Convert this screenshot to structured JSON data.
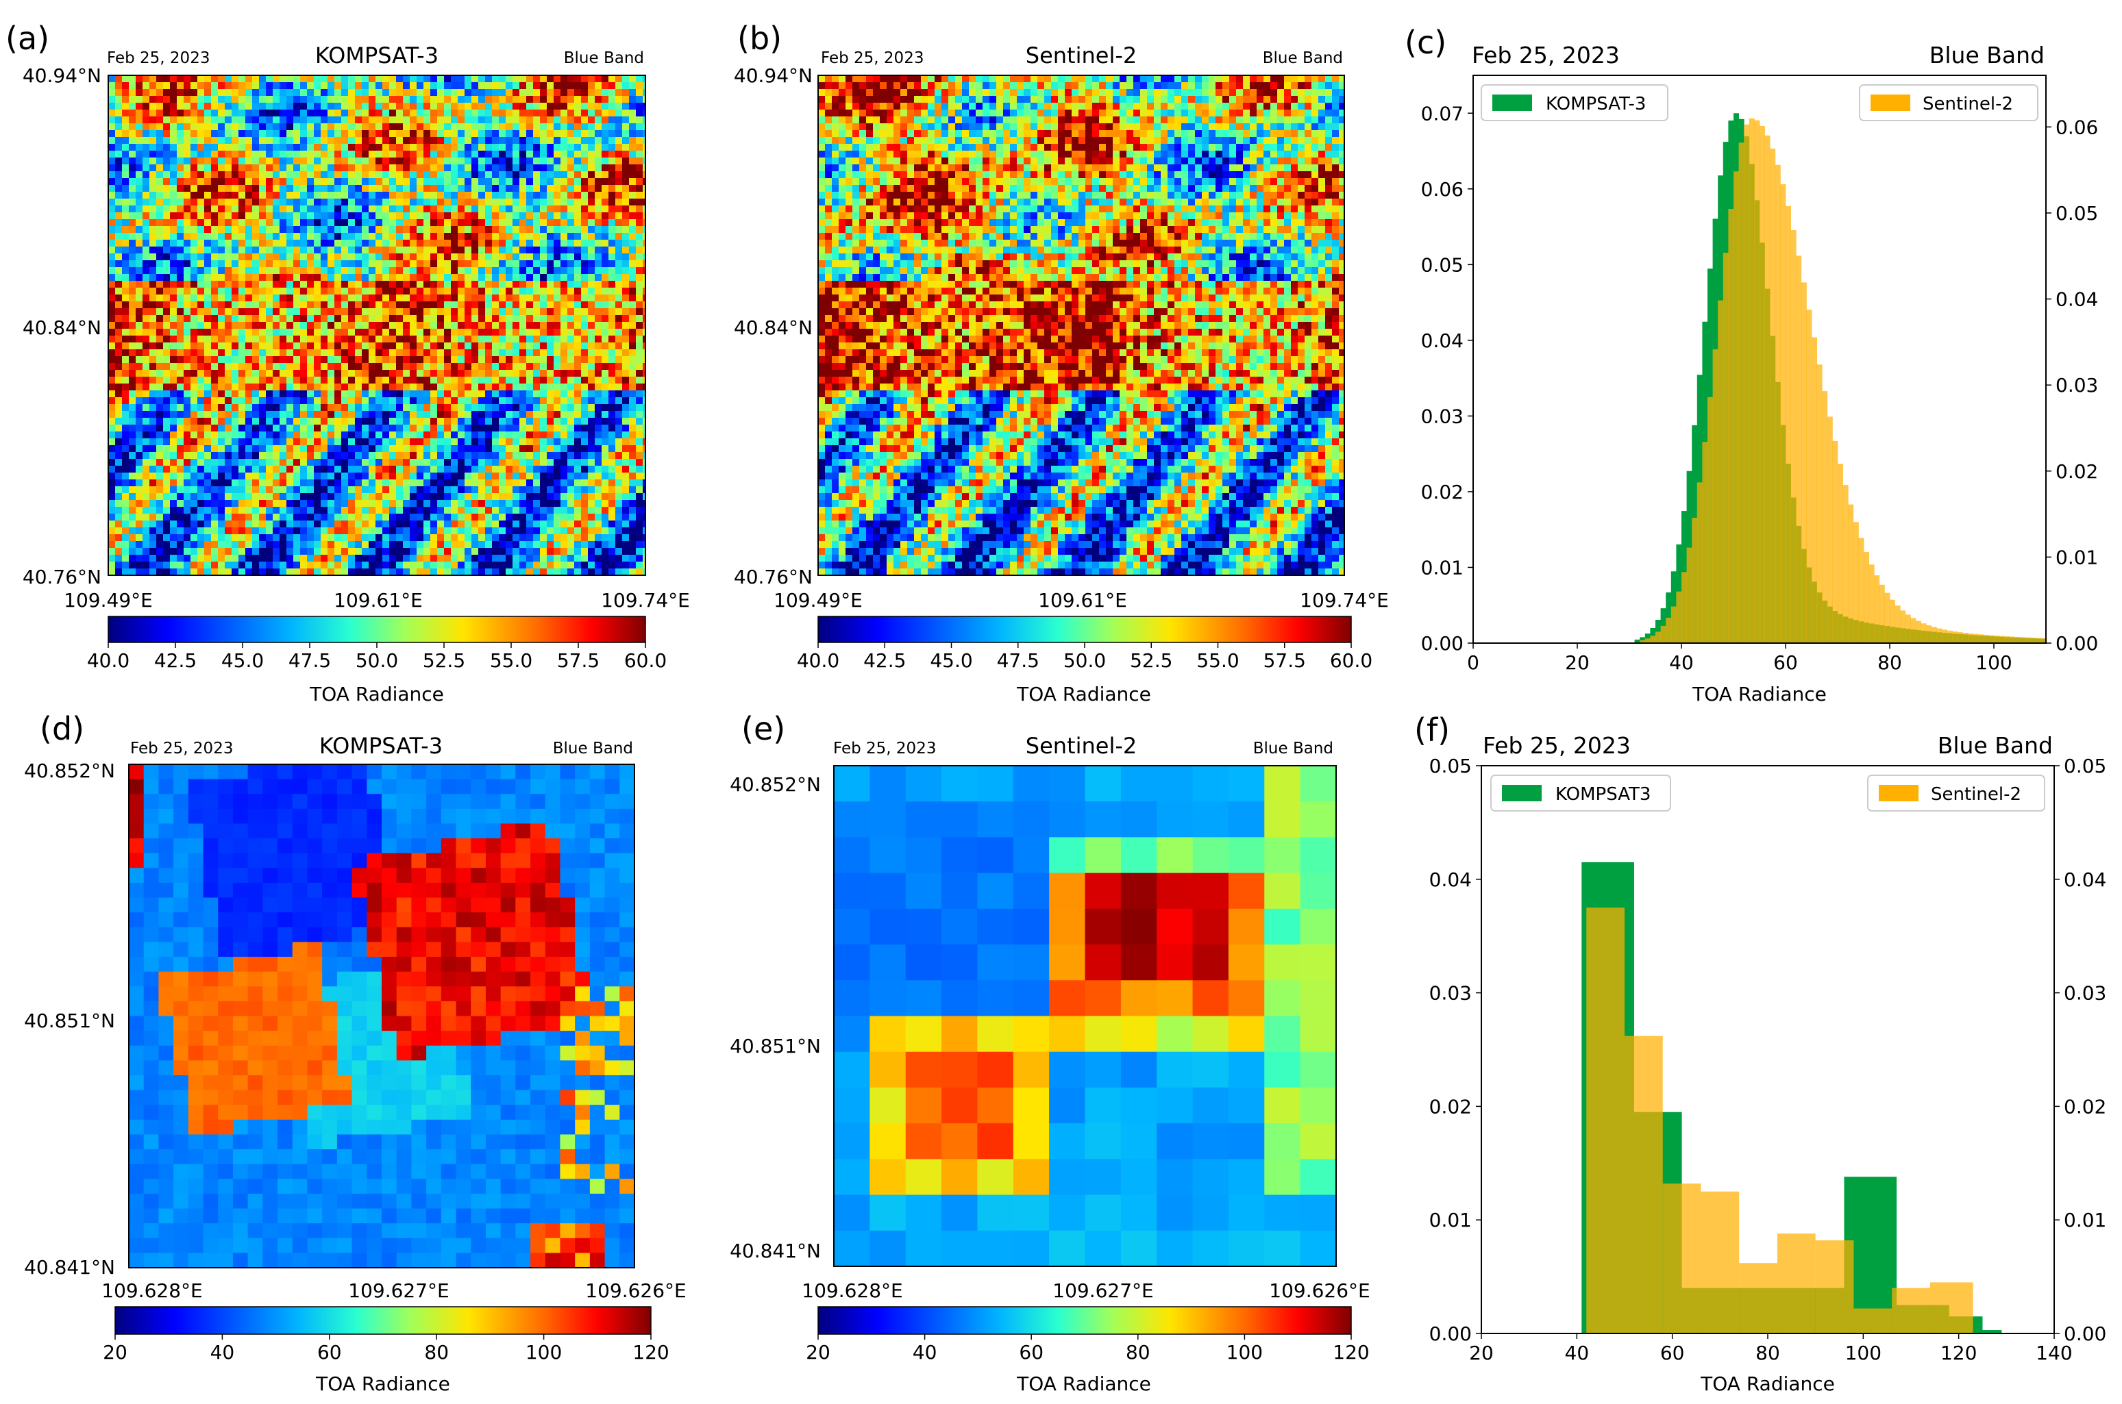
{
  "figure": {
    "colormap": [
      "#00007f",
      "#0000ff",
      "#007fff",
      "#00e5ff",
      "#7fff7f",
      "#ffe500",
      "#ff7f00",
      "#ff0000",
      "#7f0000"
    ],
    "colors": {
      "kompsat": "#00a040",
      "sentinel": "#ffb000",
      "overlap": "#cfa200"
    }
  },
  "panels": {
    "a": {
      "label": "(a)",
      "date": "Feb 25, 2023",
      "sensor": "KOMPSAT-3",
      "band": "Blue Band",
      "lat_ticks": [
        "40.94°N",
        "40.84°N",
        "40.76°N"
      ],
      "lon_ticks": [
        "109.49°E",
        "109.61°E",
        "109.74°E"
      ],
      "cbar_ticks": [
        "40.0",
        "42.5",
        "45.0",
        "47.5",
        "50.0",
        "52.5",
        "55.0",
        "57.5",
        "60.0"
      ],
      "cbar_label": "TOA Radiance"
    },
    "b": {
      "label": "(b)",
      "date": "Feb 25, 2023",
      "sensor": "Sentinel-2",
      "band": "Blue Band",
      "lat_ticks": [
        "40.94°N",
        "40.84°N",
        "40.76°N"
      ],
      "lon_ticks": [
        "109.49°E",
        "109.61°E",
        "109.74°E"
      ],
      "cbar_ticks": [
        "40.0",
        "42.5",
        "45.0",
        "47.5",
        "50.0",
        "52.5",
        "55.0",
        "57.5",
        "60.0"
      ],
      "cbar_label": "TOA Radiance"
    },
    "d": {
      "label": "(d)",
      "date": "Feb 25, 2023",
      "sensor": "KOMPSAT-3",
      "band": "Blue Band",
      "lat_ticks": [
        "40.852°N",
        "40.851°N",
        "40.841°N"
      ],
      "lon_ticks": [
        "109.628°E",
        "109.627°E",
        "109.626°E"
      ],
      "cbar_ticks": [
        "20",
        "40",
        "60",
        "80",
        "100",
        "120"
      ],
      "cbar_label": "TOA Radiance"
    },
    "e": {
      "label": "(e)",
      "date": "Feb 25, 2023",
      "sensor": "Sentinel-2",
      "band": "Blue Band",
      "lat_ticks": [
        "40.852°N",
        "40.851°N",
        "40.841°N"
      ],
      "lon_ticks": [
        "109.628°E",
        "109.627°E",
        "109.626°E"
      ],
      "cbar_ticks": [
        "20",
        "40",
        "60",
        "80",
        "100",
        "120"
      ],
      "cbar_label": "TOA Radiance"
    }
  },
  "chart_data": [
    {
      "panel": "c",
      "label": "(c)",
      "type": "histogram",
      "title": "Feb 25, 2023",
      "title_right": "Blue Band",
      "xlabel": "TOA Radiance",
      "xlim": [
        0,
        110
      ],
      "x_ticks": [
        0,
        20,
        40,
        60,
        80,
        100
      ],
      "ylim_left": [
        0,
        0.075
      ],
      "y_ticks_left": [
        "0.00",
        "0.01",
        "0.02",
        "0.03",
        "0.04",
        "0.05",
        "0.06",
        "0.07"
      ],
      "ylim_right": [
        0,
        0.066
      ],
      "y_ticks_right": [
        "0.00",
        "0.01",
        "0.02",
        "0.03",
        "0.04",
        "0.05",
        "0.06"
      ],
      "series": [
        {
          "name": "KOMPSAT-3",
          "axis": "left",
          "peak_x": 50.5,
          "peak_y": 0.07,
          "sigma_left": 6.0,
          "sigma_right": 6.3,
          "color": "#00a040"
        },
        {
          "name": "Sentinel-2",
          "axis": "right",
          "peak_x": 53.5,
          "peak_y": 0.061,
          "sigma_left": 6.5,
          "sigma_right": 11.0,
          "color": "#ffb000"
        }
      ]
    },
    {
      "panel": "f",
      "label": "(f)",
      "type": "histogram",
      "title": "Feb 25, 2023",
      "title_right": "Blue Band",
      "xlabel": "TOA Radiance",
      "xlim": [
        20,
        140
      ],
      "x_ticks": [
        20,
        40,
        60,
        80,
        100,
        120,
        140
      ],
      "ylim": [
        0,
        0.05
      ],
      "y_ticks": [
        "0.00",
        "0.01",
        "0.02",
        "0.03",
        "0.04",
        "0.05"
      ],
      "series": [
        {
          "name": "KOMPSAT3",
          "color": "#00a040",
          "bins": [
            [
              41,
              52,
              0.0415
            ],
            [
              52,
              62,
              0.0195
            ],
            [
              62,
              80,
              0.004
            ],
            [
              80,
              96,
              0.004
            ],
            [
              96,
              107,
              0.0138
            ],
            [
              107,
              118,
              0.0025
            ],
            [
              118,
              125,
              0.0015
            ],
            [
              125,
              129,
              0.0003
            ]
          ]
        },
        {
          "name": "Sentinel-2",
          "color": "#ffb000",
          "bins": [
            [
              42,
              50,
              0.0375
            ],
            [
              50,
              58,
              0.0262
            ],
            [
              58,
              66,
              0.0132
            ],
            [
              66,
              74,
              0.0125
            ],
            [
              74,
              82,
              0.0062
            ],
            [
              82,
              90,
              0.0088
            ],
            [
              90,
              98,
              0.0082
            ],
            [
              98,
              106,
              0.0022
            ],
            [
              106,
              114,
              0.004
            ],
            [
              114,
              123,
              0.0045
            ]
          ]
        }
      ]
    }
  ]
}
